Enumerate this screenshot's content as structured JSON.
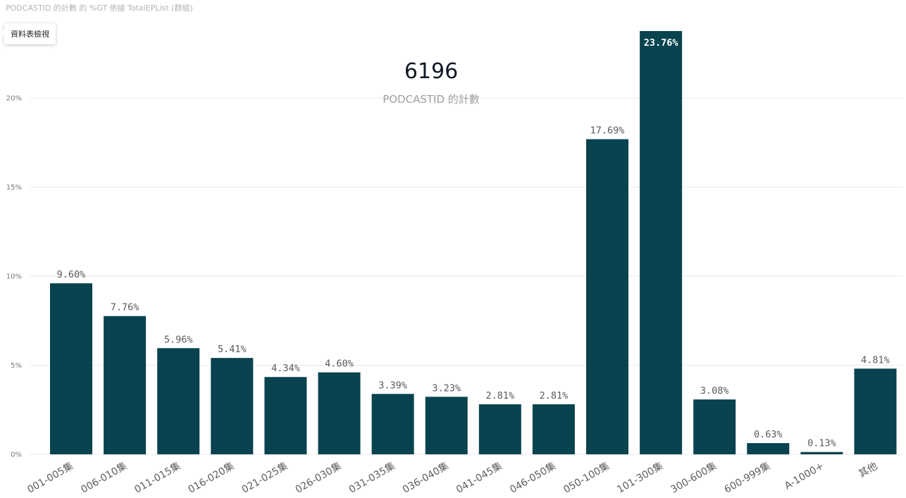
{
  "header": {
    "title": "PODCASTID 的計數 的 %GT 依據 TotalEPList (群組)"
  },
  "tooltip": {
    "label": "資料表檢視"
  },
  "card": {
    "value": "6196",
    "label": "PODCASTID 的計數"
  },
  "colors": {
    "bar": "#08434f",
    "grid": "#e9e9e9",
    "label_outside": "#5a5a5a",
    "label_inside": "#ffffff"
  },
  "chart_data": {
    "type": "bar",
    "categories": [
      "001-005集",
      "006-010集",
      "011-015集",
      "016-020集",
      "021-025集",
      "026-030集",
      "031-035集",
      "036-040集",
      "041-045集",
      "046-050集",
      "050-100集",
      "101-300集",
      "300-600集",
      "600-999集",
      "A-1000+",
      "其他"
    ],
    "values": [
      9.6,
      7.76,
      5.96,
      5.41,
      4.34,
      4.6,
      3.39,
      3.23,
      2.81,
      2.81,
      17.69,
      23.76,
      3.08,
      0.63,
      0.13,
      4.81
    ],
    "value_labels": [
      "9.60%",
      "7.76%",
      "5.96%",
      "5.41%",
      "4.34%",
      "4.60%",
      "3.39%",
      "3.23%",
      "2.81%",
      "2.81%",
      "17.69%",
      "23.76%",
      "3.08%",
      "0.63%",
      "0.13%",
      "4.81%"
    ],
    "yticks": [
      0,
      5,
      10,
      15,
      20
    ],
    "ytick_labels": [
      "0%",
      "5%",
      "10%",
      "15%",
      "20%"
    ],
    "ylim": [
      0,
      24
    ],
    "grid": true
  }
}
